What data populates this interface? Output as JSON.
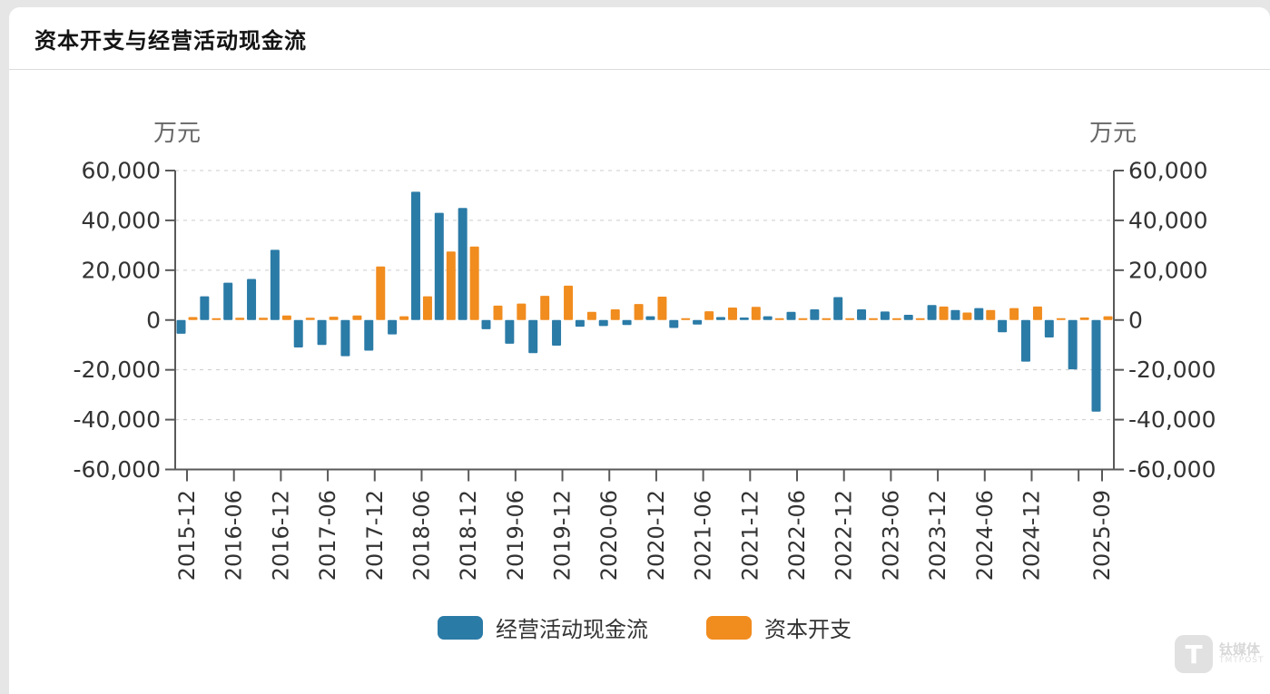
{
  "page": {
    "background": "#e6e6e6",
    "card_background": "#ffffff"
  },
  "header": {
    "title": "资本开支与经营活动现金流"
  },
  "chart_data": {
    "type": "bar",
    "title": "资本开支与经营活动现金流",
    "unit": "万元",
    "ylabel_left": "万元",
    "ylabel_right": "万元",
    "ylim": [
      -60000,
      60000
    ],
    "y_ticks": [
      60000,
      40000,
      20000,
      0,
      -20000,
      -40000,
      -60000
    ],
    "grid": "dashed-horizontal",
    "legend_position": "bottom",
    "axis_color": "#595959",
    "grid_color": "#cccccc",
    "label_color": "#333333",
    "categories": [
      "2015-12",
      "2016-03",
      "2016-06",
      "2016-09",
      "2016-12",
      "2017-03",
      "2017-06",
      "2017-09",
      "2017-12",
      "2018-03",
      "2018-06",
      "2018-09",
      "2018-12",
      "2019-03",
      "2019-06",
      "2019-09",
      "2019-12",
      "2020-03",
      "2020-06",
      "2020-09",
      "2020-12",
      "2021-03",
      "2021-06",
      "2021-09",
      "2021-12",
      "2022-03",
      "2022-06",
      "2022-09",
      "2022-12",
      "2023-03",
      "2023-06",
      "2023-09",
      "2023-12",
      "2024-03",
      "2024-06",
      "2024-09",
      "2024-12",
      "2025-03",
      "2025-06",
      "2025-09"
    ],
    "x_tick_labels": [
      "2015-12",
      "2016-06",
      "2016-12",
      "2017-06",
      "2017-12",
      "2018-06",
      "2018-12",
      "2019-06",
      "2019-12",
      "2020-06",
      "2020-12",
      "2021-06",
      "2021-12",
      "2022-06",
      "2022-12",
      "2023-06",
      "2023-12",
      "2024-06",
      "2024-12",
      "2025-09"
    ],
    "series": [
      {
        "name": "经营活动现金流",
        "color": "#2b7ba7",
        "values": [
          -5500,
          9500,
          15000,
          16500,
          28200,
          -11000,
          -10000,
          -14500,
          -12300,
          -5800,
          51500,
          43000,
          45000,
          -3700,
          -9500,
          -13300,
          -10300,
          -2700,
          -2400,
          -2000,
          1500,
          -3200,
          -1800,
          1200,
          1000,
          1500,
          3300,
          4300,
          9200,
          4300,
          3400,
          2100,
          6000,
          4000,
          4800,
          -4900,
          -16700,
          -7000,
          -19800,
          -36800
        ]
      },
      {
        "name": "资本开支",
        "color": "#f18c1f",
        "values": [
          1200,
          300,
          900,
          900,
          1800,
          900,
          1300,
          1800,
          21500,
          1500,
          9500,
          27500,
          29500,
          5800,
          6600,
          9700,
          13800,
          3300,
          4300,
          6400,
          9400,
          500,
          3500,
          5000,
          5300,
          400,
          400,
          500,
          600,
          300,
          400,
          300,
          5400,
          3000,
          4000,
          4800,
          5400,
          500,
          1000,
          1500
        ]
      }
    ]
  },
  "watermark": {
    "logo_letter": "T",
    "name": "钛媒体",
    "subname": "TMTPOST"
  }
}
